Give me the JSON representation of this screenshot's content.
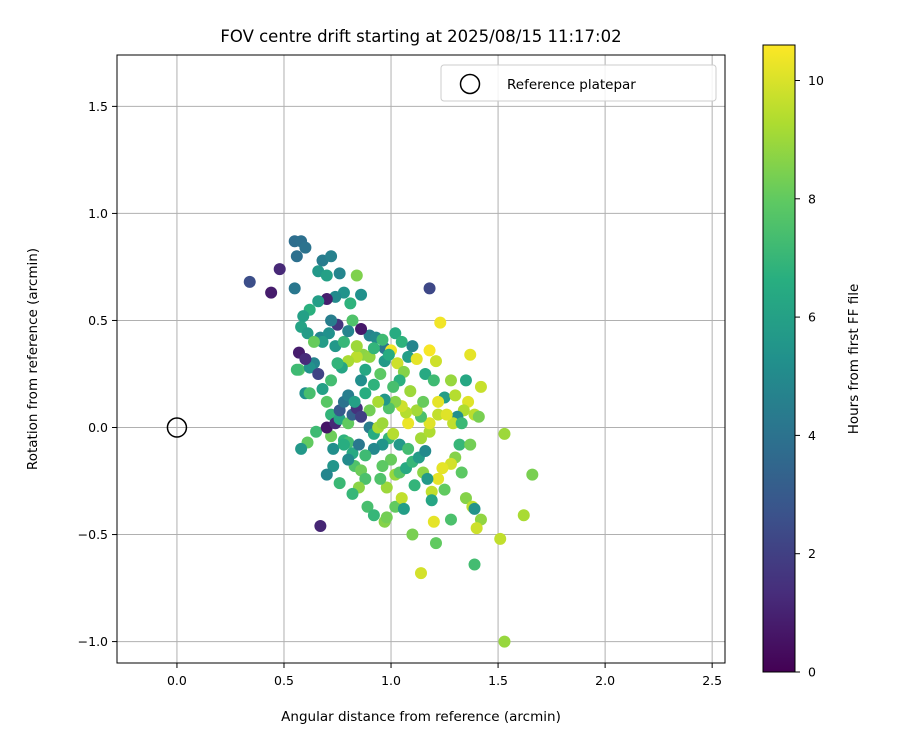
{
  "chart_data": {
    "type": "scatter",
    "title": "FOV centre drift starting at 2025/08/15 11:17:02",
    "xlabel": "Angular distance from reference (arcmin)",
    "ylabel": "Rotation from reference (arcmin)",
    "xlim": [
      -0.28,
      2.56
    ],
    "ylim": [
      -1.1,
      1.74
    ],
    "xticks": [
      0.0,
      0.5,
      1.0,
      1.5,
      2.0,
      2.5
    ],
    "xtick_labels": [
      "0.0",
      "0.5",
      "1.0",
      "1.5",
      "2.0",
      "2.5"
    ],
    "yticks": [
      -1.0,
      -0.5,
      0.0,
      0.5,
      1.0,
      1.5
    ],
    "ytick_labels": [
      "−1.0",
      "−0.5",
      "0.0",
      "0.5",
      "1.0",
      "1.5"
    ],
    "grid": true,
    "legend": {
      "placement": "top-right",
      "label": "Reference platepar"
    },
    "reference_point": {
      "x": 0.0,
      "y": 0.0
    },
    "colorbar": {
      "label": "Hours from first FF file",
      "colormap": "viridis",
      "range": [
        0,
        10.6
      ],
      "ticks": [
        0,
        2,
        4,
        6,
        8,
        10
      ],
      "tick_labels": [
        "0",
        "2",
        "4",
        "6",
        "8",
        "10"
      ]
    },
    "points": [
      [
        0.34,
        0.68,
        2.5
      ],
      [
        0.44,
        0.63,
        0.8
      ],
      [
        0.48,
        0.74,
        1.2
      ],
      [
        0.55,
        0.87,
        3.8
      ],
      [
        0.58,
        0.87,
        3.9
      ],
      [
        0.6,
        0.84,
        4.0
      ],
      [
        0.56,
        0.8,
        3.9
      ],
      [
        0.55,
        0.65,
        4.2
      ],
      [
        0.68,
        0.78,
        4.4
      ],
      [
        0.72,
        0.8,
        4.6
      ],
      [
        0.76,
        0.72,
        4.8
      ],
      [
        0.66,
        0.73,
        5.6
      ],
      [
        0.7,
        0.71,
        6.0
      ],
      [
        0.84,
        0.71,
        8.5
      ],
      [
        0.78,
        0.63,
        5.4
      ],
      [
        0.86,
        0.62,
        5.3
      ],
      [
        0.74,
        0.61,
        5.0
      ],
      [
        0.7,
        0.6,
        0.9
      ],
      [
        0.66,
        0.59,
        5.9
      ],
      [
        0.81,
        0.58,
        6.8
      ],
      [
        0.62,
        0.55,
        6.7
      ],
      [
        0.59,
        0.52,
        6.0
      ],
      [
        0.58,
        0.47,
        6.1
      ],
      [
        0.61,
        0.44,
        5.8
      ],
      [
        0.67,
        0.42,
        4.9
      ],
      [
        0.75,
        0.48,
        1.6
      ],
      [
        0.72,
        0.5,
        4.5
      ],
      [
        0.82,
        0.5,
        7.6
      ],
      [
        0.9,
        0.43,
        4.7
      ],
      [
        0.93,
        0.42,
        5.0
      ],
      [
        0.97,
        0.37,
        4.2
      ],
      [
        1.02,
        0.44,
        6.5
      ],
      [
        1.05,
        0.4,
        6.8
      ],
      [
        1.1,
        0.38,
        4.8
      ],
      [
        1.08,
        0.33,
        5.9
      ],
      [
        1.16,
        0.25,
        6.4
      ],
      [
        1.2,
        0.22,
        7.2
      ],
      [
        1.21,
        0.31,
        9.8
      ],
      [
        1.23,
        0.49,
        10.4
      ],
      [
        1.18,
        0.65,
        2.3
      ],
      [
        1.37,
        0.34,
        10.2
      ],
      [
        1.42,
        0.19,
        9.7
      ],
      [
        1.35,
        0.22,
        6.3
      ],
      [
        1.28,
        0.22,
        8.9
      ],
      [
        1.25,
        0.14,
        5.9
      ],
      [
        1.22,
        0.12,
        10.2
      ],
      [
        1.36,
        0.12,
        10.1
      ],
      [
        1.34,
        0.08,
        9.3
      ],
      [
        1.39,
        0.06,
        9.5
      ],
      [
        1.41,
        0.05,
        8.4
      ],
      [
        1.31,
        0.05,
        5.2
      ],
      [
        1.29,
        0.02,
        9.6
      ],
      [
        1.33,
        0.02,
        7.1
      ],
      [
        1.53,
        -0.03,
        9.0
      ],
      [
        1.32,
        -0.08,
        7.0
      ],
      [
        1.37,
        -0.08,
        8.3
      ],
      [
        1.3,
        -0.14,
        8.6
      ],
      [
        1.28,
        -0.17,
        9.9
      ],
      [
        1.24,
        -0.19,
        10.2
      ],
      [
        1.22,
        -0.24,
        10.2
      ],
      [
        1.33,
        -0.21,
        7.9
      ],
      [
        1.25,
        -0.29,
        8.0
      ],
      [
        1.19,
        -0.3,
        9.6
      ],
      [
        1.19,
        -0.34,
        6.2
      ],
      [
        1.28,
        -0.43,
        7.5
      ],
      [
        1.35,
        -0.33,
        8.6
      ],
      [
        1.38,
        -0.37,
        9.5
      ],
      [
        1.39,
        -0.38,
        5.4
      ],
      [
        1.42,
        -0.43,
        8.8
      ],
      [
        1.4,
        -0.47,
        9.8
      ],
      [
        1.51,
        -0.52,
        9.6
      ],
      [
        1.62,
        -0.41,
        9.2
      ],
      [
        1.66,
        -0.22,
        8.4
      ],
      [
        1.2,
        -0.44,
        10.2
      ],
      [
        1.21,
        -0.54,
        8.0
      ],
      [
        1.1,
        -0.5,
        8.4
      ],
      [
        1.14,
        -0.68,
        9.9
      ],
      [
        1.39,
        -0.64,
        7.3
      ],
      [
        1.53,
        -1.0,
        8.9
      ],
      [
        0.67,
        -0.46,
        1.1
      ],
      [
        0.57,
        0.27,
        7.6
      ],
      [
        0.56,
        0.27,
        7.2
      ],
      [
        0.6,
        0.16,
        5.3
      ],
      [
        0.62,
        0.16,
        7.4
      ],
      [
        0.61,
        -0.07,
        8.0
      ],
      [
        0.58,
        -0.1,
        5.6
      ],
      [
        0.65,
        -0.02,
        7.2
      ],
      [
        0.72,
        -0.04,
        8.2
      ],
      [
        0.73,
        -0.1,
        5.2
      ],
      [
        0.78,
        -0.06,
        6.8
      ],
      [
        0.8,
        -0.07,
        7.3
      ],
      [
        0.82,
        -0.12,
        6.4
      ],
      [
        0.83,
        -0.18,
        7.6
      ],
      [
        0.86,
        -0.2,
        8.2
      ],
      [
        0.88,
        -0.24,
        7.5
      ],
      [
        0.85,
        -0.28,
        8.7
      ],
      [
        0.82,
        -0.31,
        7.0
      ],
      [
        0.89,
        -0.37,
        7.4
      ],
      [
        0.92,
        -0.41,
        7.0
      ],
      [
        0.97,
        -0.44,
        8.6
      ],
      [
        0.98,
        -0.42,
        8.3
      ],
      [
        1.02,
        -0.37,
        8.0
      ],
      [
        1.05,
        -0.33,
        9.6
      ],
      [
        1.06,
        -0.38,
        5.9
      ],
      [
        0.98,
        -0.28,
        9.0
      ],
      [
        0.95,
        -0.24,
        7.6
      ],
      [
        1.02,
        -0.22,
        8.9
      ],
      [
        1.04,
        -0.21,
        7.8
      ],
      [
        1.07,
        -0.19,
        6.4
      ],
      [
        1.1,
        -0.16,
        7.0
      ],
      [
        1.13,
        -0.14,
        5.8
      ],
      [
        1.16,
        -0.11,
        5.0
      ],
      [
        1.14,
        -0.05,
        9.1
      ],
      [
        1.18,
        -0.02,
        9.3
      ],
      [
        1.18,
        0.02,
        10.1
      ],
      [
        1.14,
        0.05,
        7.5
      ],
      [
        1.12,
        0.08,
        9.1
      ],
      [
        1.08,
        0.02,
        10.3
      ],
      [
        1.07,
        0.07,
        9.4
      ],
      [
        1.05,
        0.1,
        9.8
      ],
      [
        1.02,
        0.12,
        8.6
      ],
      [
        0.99,
        0.09,
        7.6
      ],
      [
        0.97,
        0.13,
        5.6
      ],
      [
        0.94,
        0.12,
        9.2
      ],
      [
        0.9,
        0.08,
        8.3
      ],
      [
        0.88,
        0.16,
        6.6
      ],
      [
        0.92,
        0.2,
        6.8
      ],
      [
        0.95,
        0.25,
        7.9
      ],
      [
        0.97,
        0.31,
        5.7
      ],
      [
        1.0,
        0.36,
        10.4
      ],
      [
        1.03,
        0.3,
        9.8
      ],
      [
        1.06,
        0.26,
        8.6
      ],
      [
        1.04,
        0.22,
        6.7
      ],
      [
        1.01,
        0.19,
        7.4
      ],
      [
        0.87,
        0.34,
        8.7
      ],
      [
        0.84,
        0.33,
        9.5
      ],
      [
        0.8,
        0.31,
        9.2
      ],
      [
        0.77,
        0.28,
        6.2
      ],
      [
        0.75,
        0.3,
        6.9
      ],
      [
        0.72,
        0.22,
        7.3
      ],
      [
        0.68,
        0.18,
        6.0
      ],
      [
        0.64,
        0.3,
        4.8
      ],
      [
        0.62,
        0.28,
        5.4
      ],
      [
        0.57,
        0.35,
        0.8
      ],
      [
        0.6,
        0.32,
        1.3
      ],
      [
        0.66,
        0.25,
        2.1
      ],
      [
        0.7,
        0.12,
        7.8
      ],
      [
        0.72,
        0.06,
        6.9
      ],
      [
        0.7,
        0.0,
        0.6
      ],
      [
        0.74,
        0.02,
        1.2
      ],
      [
        0.76,
        0.04,
        6.2
      ],
      [
        0.8,
        0.02,
        8.0
      ],
      [
        0.82,
        0.06,
        3.3
      ],
      [
        0.84,
        0.09,
        1.5
      ],
      [
        0.86,
        0.05,
        2.0
      ],
      [
        0.9,
        0.0,
        4.4
      ],
      [
        0.92,
        -0.03,
        6.5
      ],
      [
        0.94,
        0.0,
        9.2
      ],
      [
        0.96,
        0.02,
        9.0
      ],
      [
        0.99,
        -0.05,
        7.0
      ],
      [
        1.01,
        -0.03,
        9.4
      ],
      [
        1.04,
        -0.08,
        5.6
      ],
      [
        1.08,
        -0.1,
        7.3
      ],
      [
        0.96,
        -0.08,
        5.5
      ],
      [
        0.92,
        -0.1,
        4.9
      ],
      [
        0.88,
        -0.13,
        7.2
      ],
      [
        0.85,
        -0.08,
        4.2
      ],
      [
        0.8,
        -0.15,
        5.0
      ],
      [
        0.78,
        -0.08,
        6.6
      ],
      [
        0.76,
        0.08,
        3.0
      ],
      [
        0.78,
        0.12,
        4.0
      ],
      [
        0.8,
        0.15,
        4.5
      ],
      [
        0.83,
        0.12,
        6.0
      ],
      [
        0.86,
        0.22,
        5.2
      ],
      [
        0.88,
        0.27,
        6.3
      ],
      [
        0.9,
        0.33,
        8.8
      ],
      [
        0.92,
        0.37,
        6.9
      ],
      [
        0.96,
        0.41,
        7.2
      ],
      [
        0.99,
        0.34,
        6.5
      ],
      [
        0.74,
        0.38,
        5.6
      ],
      [
        0.71,
        0.44,
        5.3
      ],
      [
        0.68,
        0.4,
        5.8
      ],
      [
        0.64,
        0.4,
        8.1
      ],
      [
        0.78,
        0.4,
        7.0
      ],
      [
        0.8,
        0.45,
        4.8
      ],
      [
        0.86,
        0.46,
        0.7
      ],
      [
        0.84,
        0.38,
        9.0
      ],
      [
        1.11,
        -0.27,
        6.9
      ],
      [
        1.15,
        -0.21,
        8.7
      ],
      [
        1.17,
        -0.24,
        5.7
      ],
      [
        1.0,
        -0.15,
        8.1
      ],
      [
        0.96,
        -0.18,
        7.9
      ],
      [
        1.22,
        0.06,
        9.6
      ],
      [
        1.26,
        0.06,
        10.1
      ],
      [
        1.3,
        0.15,
        9.4
      ],
      [
        1.18,
        0.36,
        10.5
      ],
      [
        1.12,
        0.32,
        10.2
      ],
      [
        1.09,
        0.17,
        9.0
      ],
      [
        1.15,
        0.12,
        8.1
      ],
      [
        0.73,
        -0.18,
        5.5
      ],
      [
        0.7,
        -0.22,
        4.8
      ],
      [
        0.76,
        -0.26,
        7.1
      ]
    ]
  }
}
